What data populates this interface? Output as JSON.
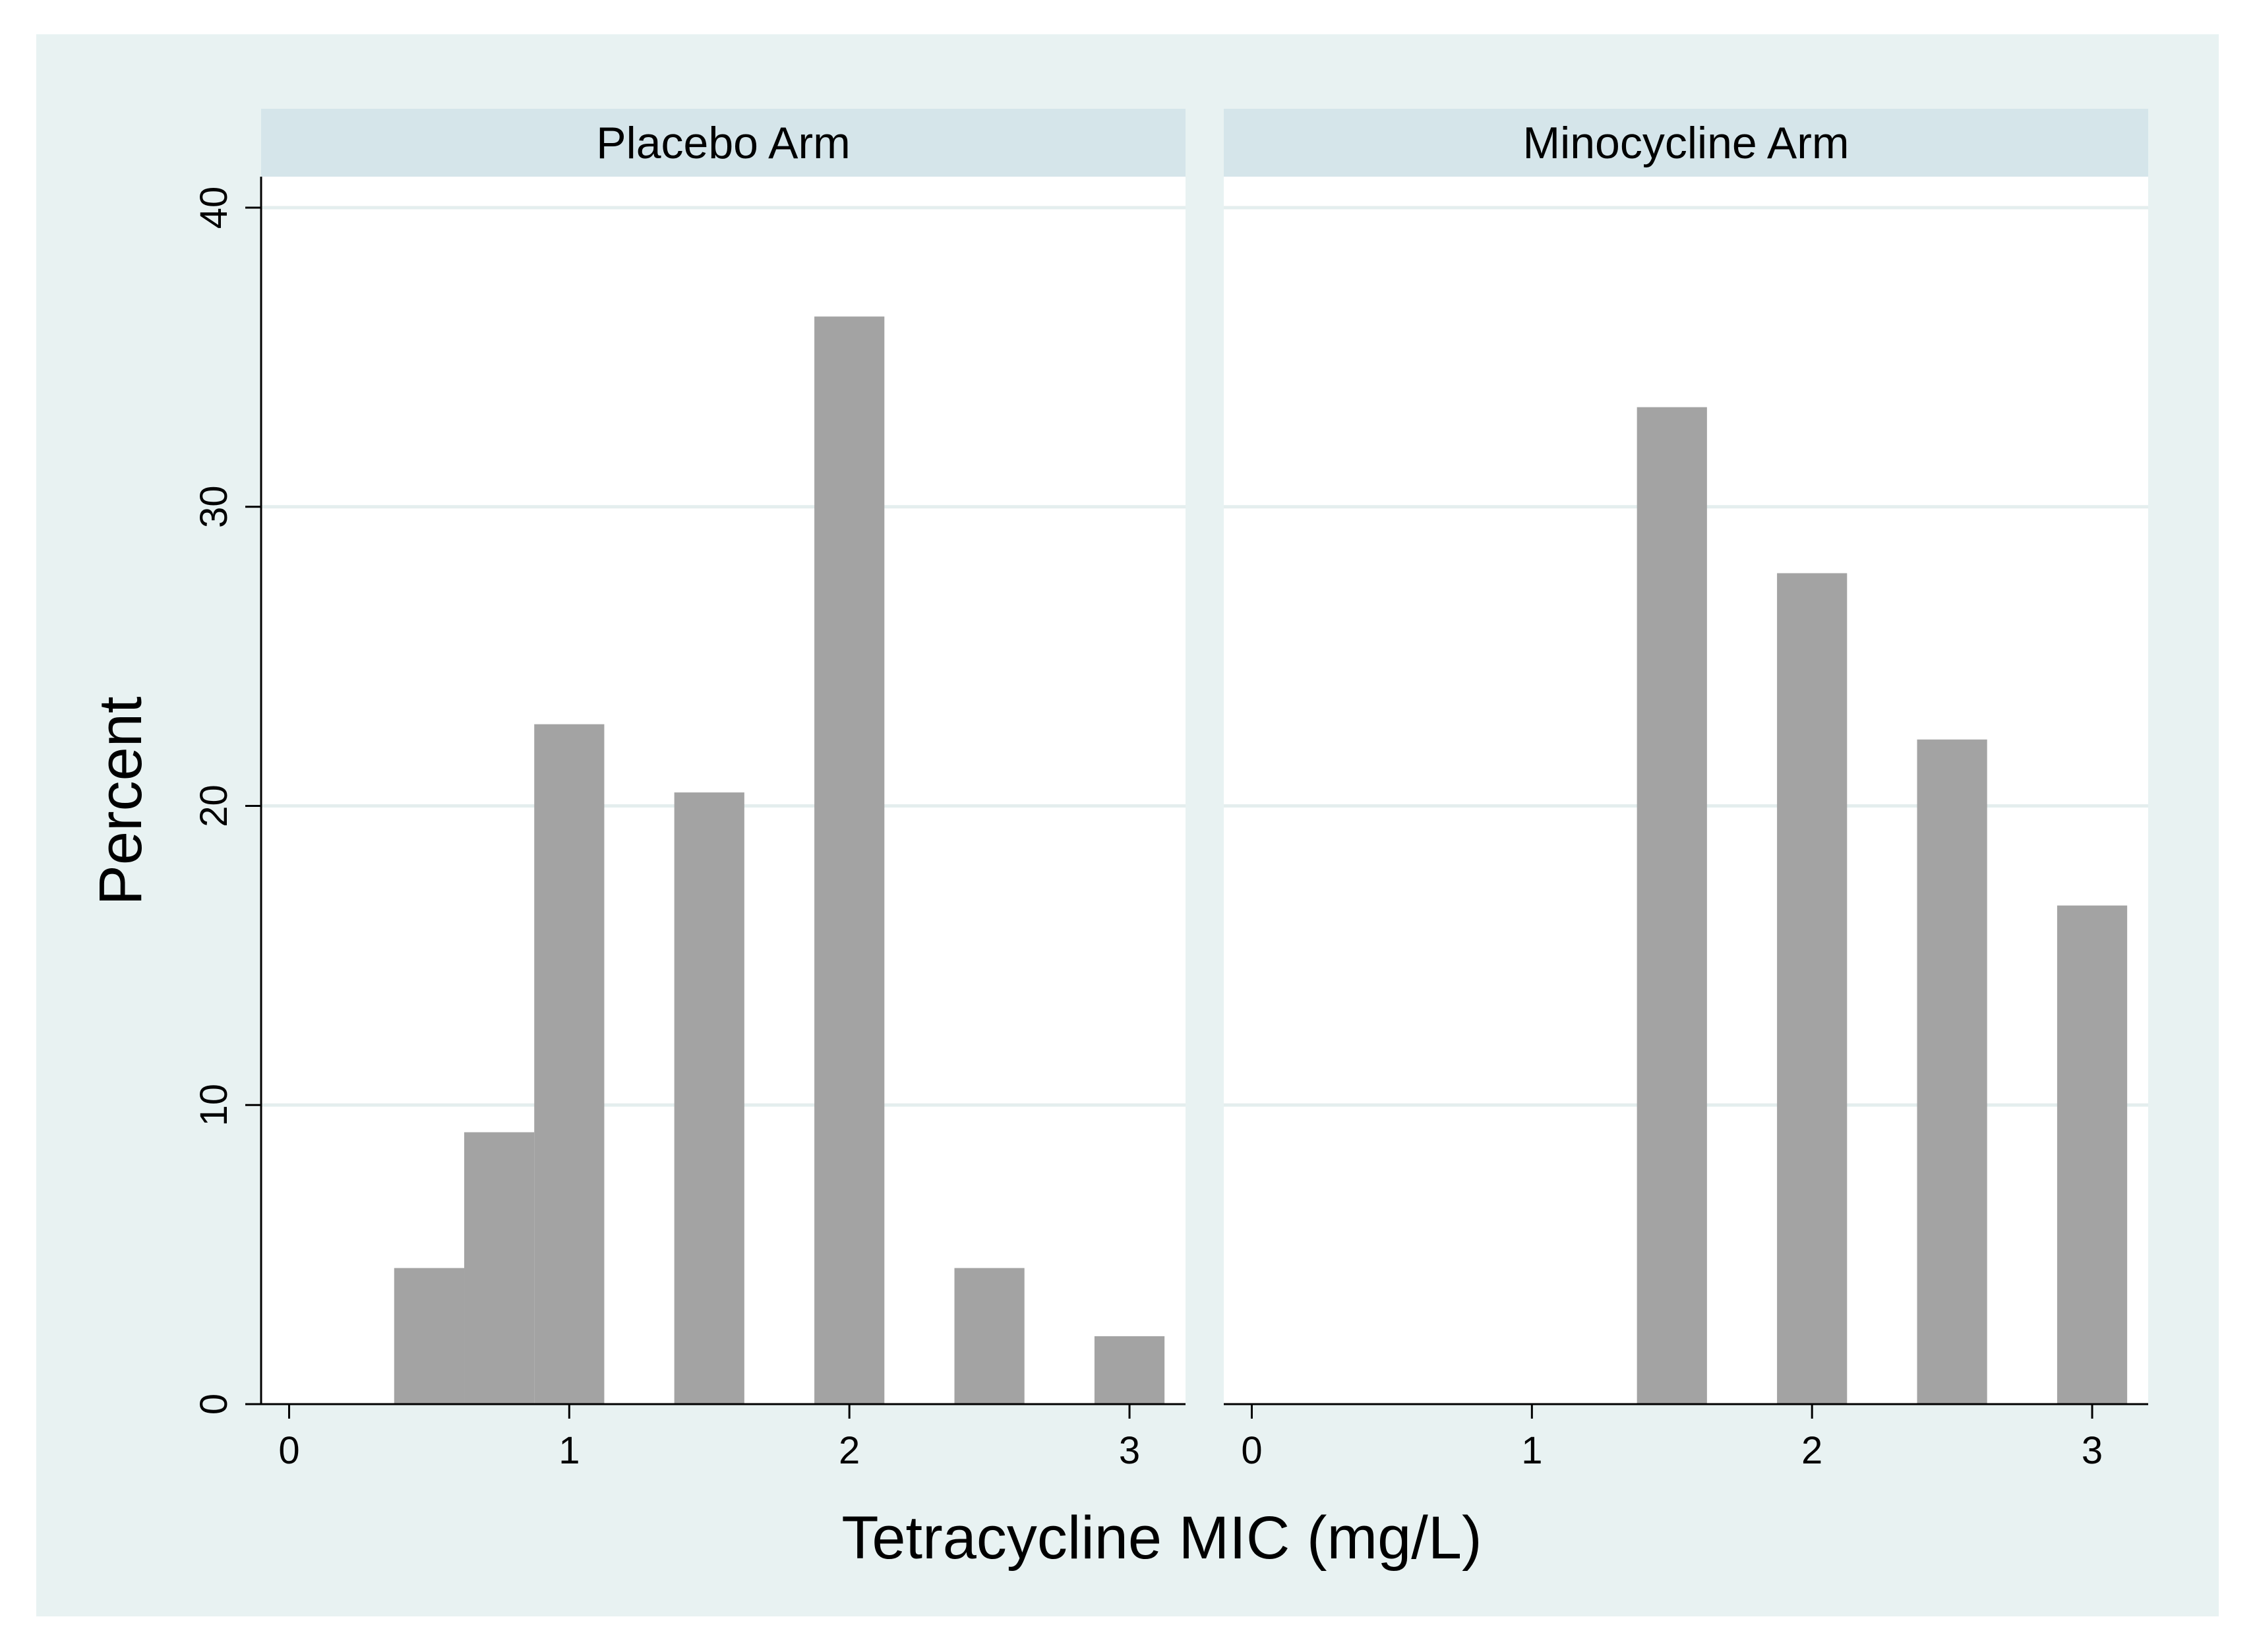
{
  "chart_data": {
    "type": "bar",
    "title": "",
    "xlabel": "Tetracycline MIC (mg/L)",
    "ylabel": "Percent",
    "ylim": [
      0,
      40
    ],
    "xlim": [
      -0.1,
      3.2
    ],
    "x_ticks": [
      "0",
      "1",
      "2",
      "3"
    ],
    "y_ticks": [
      "0",
      "10",
      "20",
      "30",
      "40"
    ],
    "grid": true,
    "legend": "none",
    "colors": {
      "outer_background": "#e8f2f2",
      "plot_background": "#ffffff",
      "strip_background": "#d5e5ea",
      "bar_fill": "#a3a3a3",
      "gridline": "#e4eeee",
      "axis": "#000000"
    },
    "panels": [
      {
        "name": "placebo",
        "label": "Placebo Arm",
        "bars": [
          {
            "x0": 0.375,
            "x1": 0.625,
            "value": 4.55
          },
          {
            "x0": 0.625,
            "x1": 0.875,
            "value": 9.09
          },
          {
            "x0": 0.875,
            "x1": 1.125,
            "value": 22.73
          },
          {
            "x0": 1.375,
            "x1": 1.625,
            "value": 20.45
          },
          {
            "x0": 1.875,
            "x1": 2.125,
            "value": 36.36
          },
          {
            "x0": 2.375,
            "x1": 2.625,
            "value": 4.55
          },
          {
            "x0": 2.875,
            "x1": 3.125,
            "value": 2.27
          }
        ]
      },
      {
        "name": "minocycline",
        "label": "Minocycline Arm",
        "bars": [
          {
            "x0": 1.375,
            "x1": 1.625,
            "value": 33.33
          },
          {
            "x0": 1.875,
            "x1": 2.125,
            "value": 27.78
          },
          {
            "x0": 2.375,
            "x1": 2.625,
            "value": 22.22
          },
          {
            "x0": 2.875,
            "x1": 3.125,
            "value": 16.67
          }
        ]
      }
    ]
  }
}
